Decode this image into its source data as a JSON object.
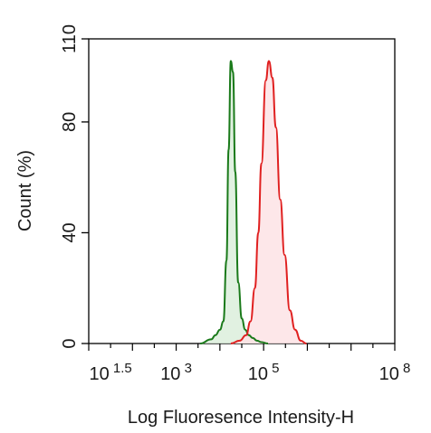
{
  "chart_data": {
    "type": "area",
    "title": "",
    "xlabel": "Log Fluoresence Intensity-H",
    "ylabel": "Count  (%)",
    "xscale": "log10",
    "xlim_log10": [
      1.0,
      8.0
    ],
    "ylim": [
      0,
      110
    ],
    "x_ticks": [
      {
        "base": "10",
        "exp": "1.5",
        "log10": 1.5
      },
      {
        "base": "10",
        "exp": "3",
        "log10": 3
      },
      {
        "base": "10",
        "exp": "5",
        "log10": 5
      },
      {
        "base": "10",
        "exp": "8",
        "log10": 8
      }
    ],
    "y_ticks": [
      {
        "label": "0",
        "value": 0
      },
      {
        "label": "40",
        "value": 40
      },
      {
        "label": "80",
        "value": 80
      },
      {
        "label": "110",
        "value": 110
      }
    ],
    "grid": false,
    "legend": "none",
    "series": [
      {
        "color": "#1a7a1a",
        "fill": "#dcefdc",
        "x_log10": [
          3.55,
          3.8,
          3.9,
          4.0,
          4.08,
          4.15,
          4.2,
          4.25,
          4.3,
          4.35,
          4.42,
          4.5,
          4.58,
          4.66,
          4.75,
          4.85,
          4.95,
          5.1
        ],
        "y": [
          0,
          1.5,
          3,
          5,
          8,
          30,
          70,
          102,
          98,
          62,
          22,
          9,
          5,
          3,
          2,
          1,
          0.5,
          0
        ]
      },
      {
        "color": "#e02020",
        "fill": "#fde3e5",
        "x_log10": [
          4.25,
          4.45,
          4.6,
          4.7,
          4.8,
          4.88,
          4.95,
          5.05,
          5.12,
          5.2,
          5.28,
          5.38,
          5.48,
          5.6,
          5.72,
          5.85,
          5.98
        ],
        "y": [
          0,
          1,
          3,
          8,
          20,
          40,
          65,
          95,
          102,
          96,
          78,
          52,
          32,
          12,
          5,
          1,
          0
        ]
      }
    ]
  }
}
